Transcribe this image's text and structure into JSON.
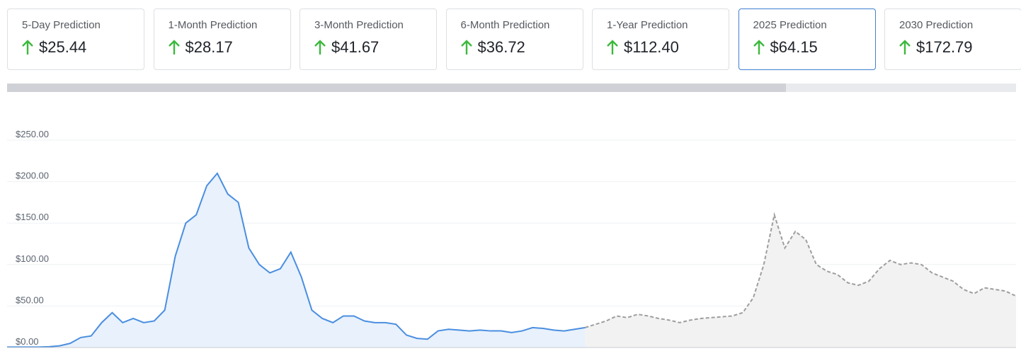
{
  "cards": [
    {
      "label": "5-Day Prediction",
      "value": "$25.44"
    },
    {
      "label": "1-Month Prediction",
      "value": "$28.17"
    },
    {
      "label": "3-Month Prediction",
      "value": "$41.67"
    },
    {
      "label": "6-Month Prediction",
      "value": "$36.72"
    },
    {
      "label": "1-Year Prediction",
      "value": "$112.40"
    },
    {
      "label": "2025 Prediction",
      "value": "$64.15"
    },
    {
      "label": "2030 Prediction",
      "value": "$172.79"
    }
  ],
  "chart_data": {
    "type": "line",
    "grid": true,
    "ylim": [
      0,
      250
    ],
    "yticks": [
      {
        "value": 0,
        "label": "$0.00"
      },
      {
        "value": 50,
        "label": "$50.00"
      },
      {
        "value": 100,
        "label": "$100.00"
      },
      {
        "value": 150,
        "label": "$150.00"
      },
      {
        "value": 200,
        "label": "$200.00"
      },
      {
        "value": 250,
        "label": "$250.00"
      }
    ],
    "series": [
      {
        "color": "#4a8ee0",
        "fill": "#e8f1fc",
        "dashed": false,
        "values": [
          0.5,
          0.5,
          0.5,
          0.5,
          1,
          2,
          5,
          12,
          14,
          30,
          42,
          30,
          35,
          30,
          32,
          45,
          110,
          150,
          160,
          195,
          210,
          185,
          175,
          120,
          100,
          90,
          95,
          115,
          85,
          45,
          35,
          30,
          38,
          38,
          32,
          30,
          30,
          28,
          15,
          11,
          10,
          20,
          22,
          21,
          20,
          21,
          20,
          20,
          18,
          20,
          24,
          23,
          21,
          20,
          22,
          24,
          null,
          null,
          null,
          null,
          null,
          null,
          null,
          null,
          null,
          null,
          null,
          null,
          null,
          null,
          null,
          null,
          null,
          null,
          null,
          null,
          null,
          null,
          null,
          null,
          null,
          null,
          null,
          null,
          null,
          null,
          null,
          null,
          null,
          null,
          null,
          null,
          null,
          null,
          null,
          null,
          null
        ]
      },
      {
        "color": "#9e9e9e",
        "fill": "#f2f2f2",
        "dashed": true,
        "values": [
          null,
          null,
          null,
          null,
          null,
          null,
          null,
          null,
          null,
          null,
          null,
          null,
          null,
          null,
          null,
          null,
          null,
          null,
          null,
          null,
          null,
          null,
          null,
          null,
          null,
          null,
          null,
          null,
          null,
          null,
          null,
          null,
          null,
          null,
          null,
          null,
          null,
          null,
          null,
          null,
          null,
          null,
          null,
          null,
          null,
          null,
          null,
          null,
          null,
          null,
          null,
          null,
          null,
          null,
          null,
          24,
          28,
          32,
          38,
          36,
          40,
          38,
          35,
          33,
          30,
          33,
          35,
          36,
          37,
          38,
          42,
          60,
          100,
          160,
          120,
          140,
          130,
          100,
          92,
          88,
          78,
          75,
          80,
          95,
          105,
          100,
          102,
          100,
          90,
          85,
          80,
          70,
          65,
          72,
          70,
          68,
          62
        ]
      }
    ]
  }
}
